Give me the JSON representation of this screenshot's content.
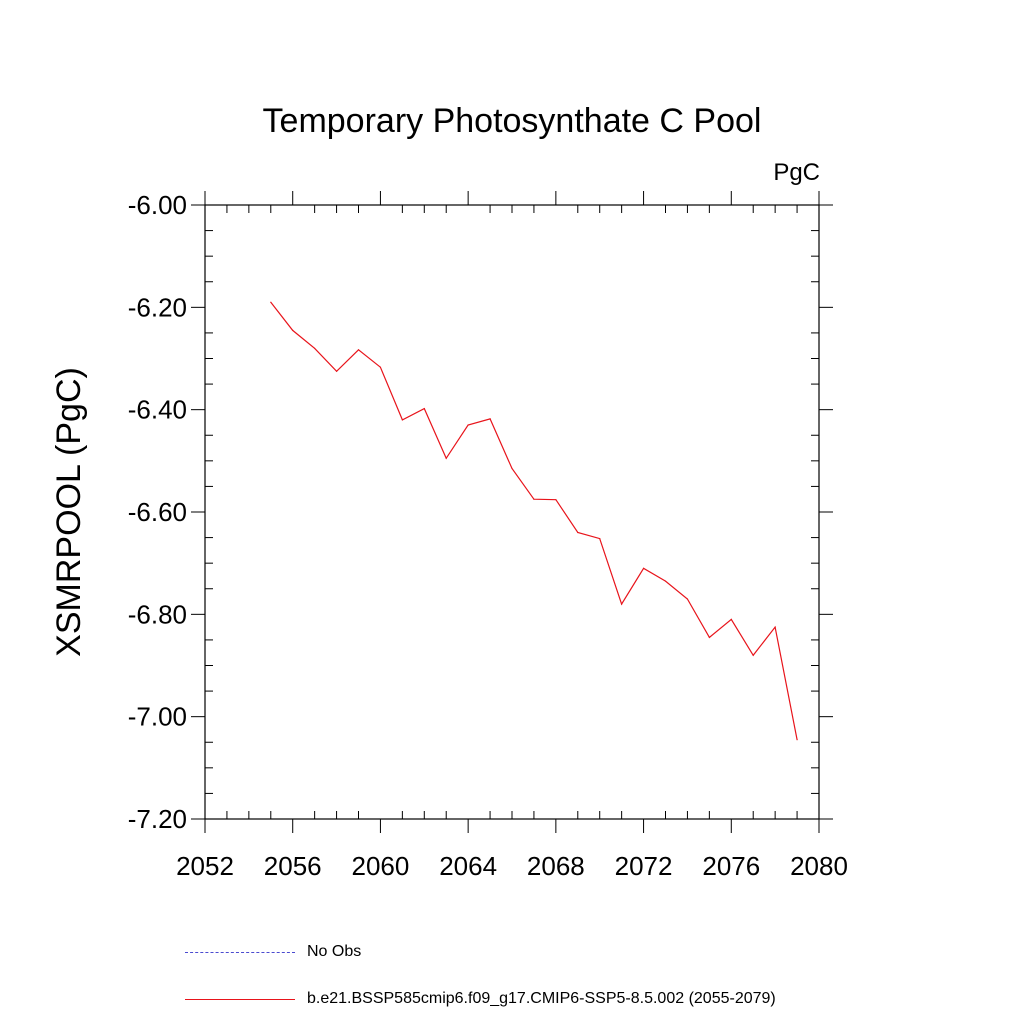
{
  "chart_data": {
    "type": "line",
    "title": "Temporary Photosynthate C Pool",
    "units": "PgC",
    "ylabel": "XSMRPOOL  (PgC)",
    "xlabel": "",
    "xlim": [
      2052,
      2080
    ],
    "ylim": [
      -7.2,
      -6.0
    ],
    "xticks": [
      2052,
      2056,
      2060,
      2064,
      2068,
      2072,
      2076,
      2080
    ],
    "xtick_labels": [
      "2052",
      "2056",
      "2060",
      "2064",
      "2068",
      "2072",
      "2076",
      "2080"
    ],
    "yticks": [
      -6.0,
      -6.2,
      -6.4,
      -6.6,
      -6.8,
      -7.0,
      -7.2
    ],
    "ytick_labels": [
      "-6.00",
      "-6.20",
      "-6.40",
      "-6.60",
      "-6.80",
      "-7.00",
      "-7.20"
    ],
    "series": [
      {
        "name": "b.e21.BSSP585cmip6.f09_g17.CMIP6-SSP5-8.5.002 (2055-2079)",
        "color": "#e8141b",
        "x": [
          2055,
          2056,
          2057,
          2058,
          2059,
          2060,
          2061,
          2062,
          2063,
          2064,
          2065,
          2066,
          2067,
          2068,
          2069,
          2070,
          2071,
          2072,
          2073,
          2074,
          2075,
          2076,
          2077,
          2078,
          2079
        ],
        "values": [
          -6.19,
          -6.245,
          -6.28,
          -6.325,
          -6.283,
          -6.317,
          -6.42,
          -6.398,
          -6.495,
          -6.43,
          -6.418,
          -6.515,
          -6.575,
          -6.576,
          -6.64,
          -6.652,
          -6.78,
          -6.71,
          -6.735,
          -6.77,
          -6.845,
          -6.81,
          -6.88,
          -6.825,
          -7.045
        ]
      }
    ],
    "legend": [
      {
        "label": "No Obs",
        "color": "#4a4ad0",
        "style": "dashed"
      },
      {
        "label": "b.e21.BSSP585cmip6.f09_g17.CMIP6-SSP5-8.5.002 (2055-2079)",
        "color": "#e8141b",
        "style": "solid"
      }
    ]
  }
}
